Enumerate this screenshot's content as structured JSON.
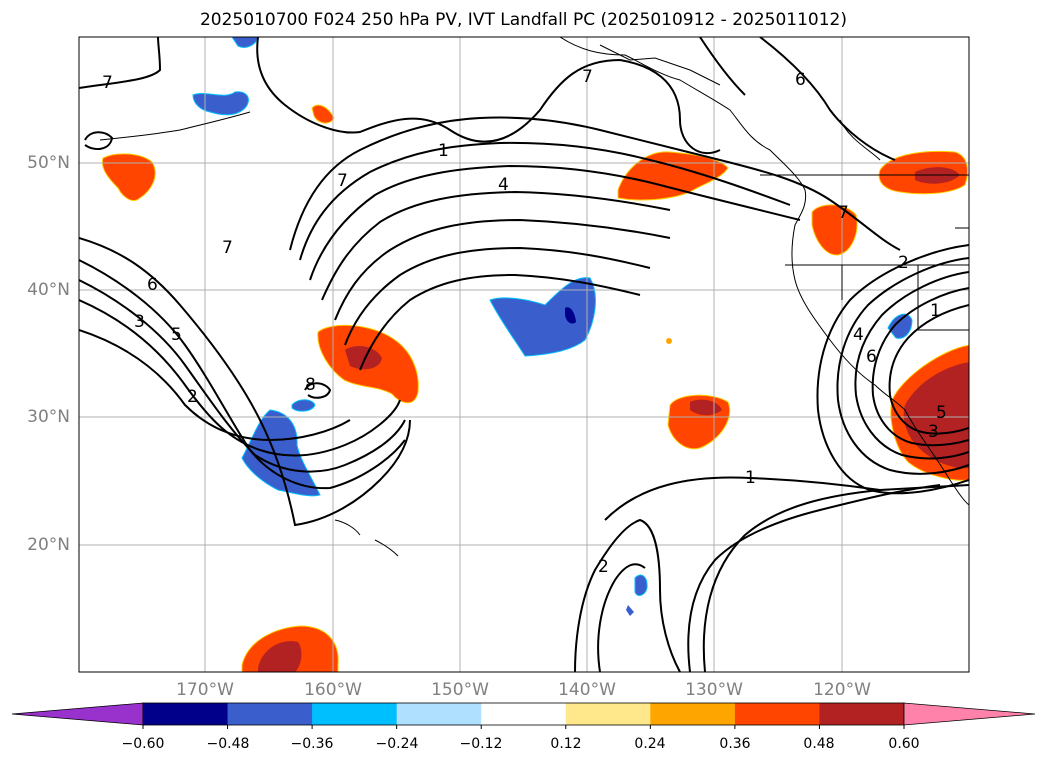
{
  "title": "2025010700 F024 250 hPa PV, IVT Landfall PC (2025010912 - 2025011012)",
  "longitude_labels": [
    "170°W",
    "160°W",
    "150°W",
    "140°W",
    "130°W",
    "120°W"
  ],
  "latitude_labels": [
    "50°N",
    "40°N",
    "30°N",
    "20°N"
  ],
  "contour_labels": [
    "7",
    "7",
    "1",
    "7",
    "4",
    "6",
    "3",
    "5",
    "2",
    "8",
    "1",
    "2",
    "1",
    "2",
    "7",
    "4",
    "6",
    "5",
    "3",
    "7",
    "6"
  ],
  "colorbar": {
    "tick_labels": [
      "−0.60",
      "−0.48",
      "−0.36",
      "−0.24",
      "−0.12",
      "0.12",
      "0.24",
      "0.36",
      "0.48",
      "0.60"
    ],
    "colors": [
      "#9932cc",
      "#00008b",
      "#3a5fcd",
      "#00bfff",
      "#b0e0ff",
      "#ffffff",
      "#ffe88c",
      "#ffa500",
      "#ff4500",
      "#b22222",
      "#ff82ab"
    ]
  }
}
